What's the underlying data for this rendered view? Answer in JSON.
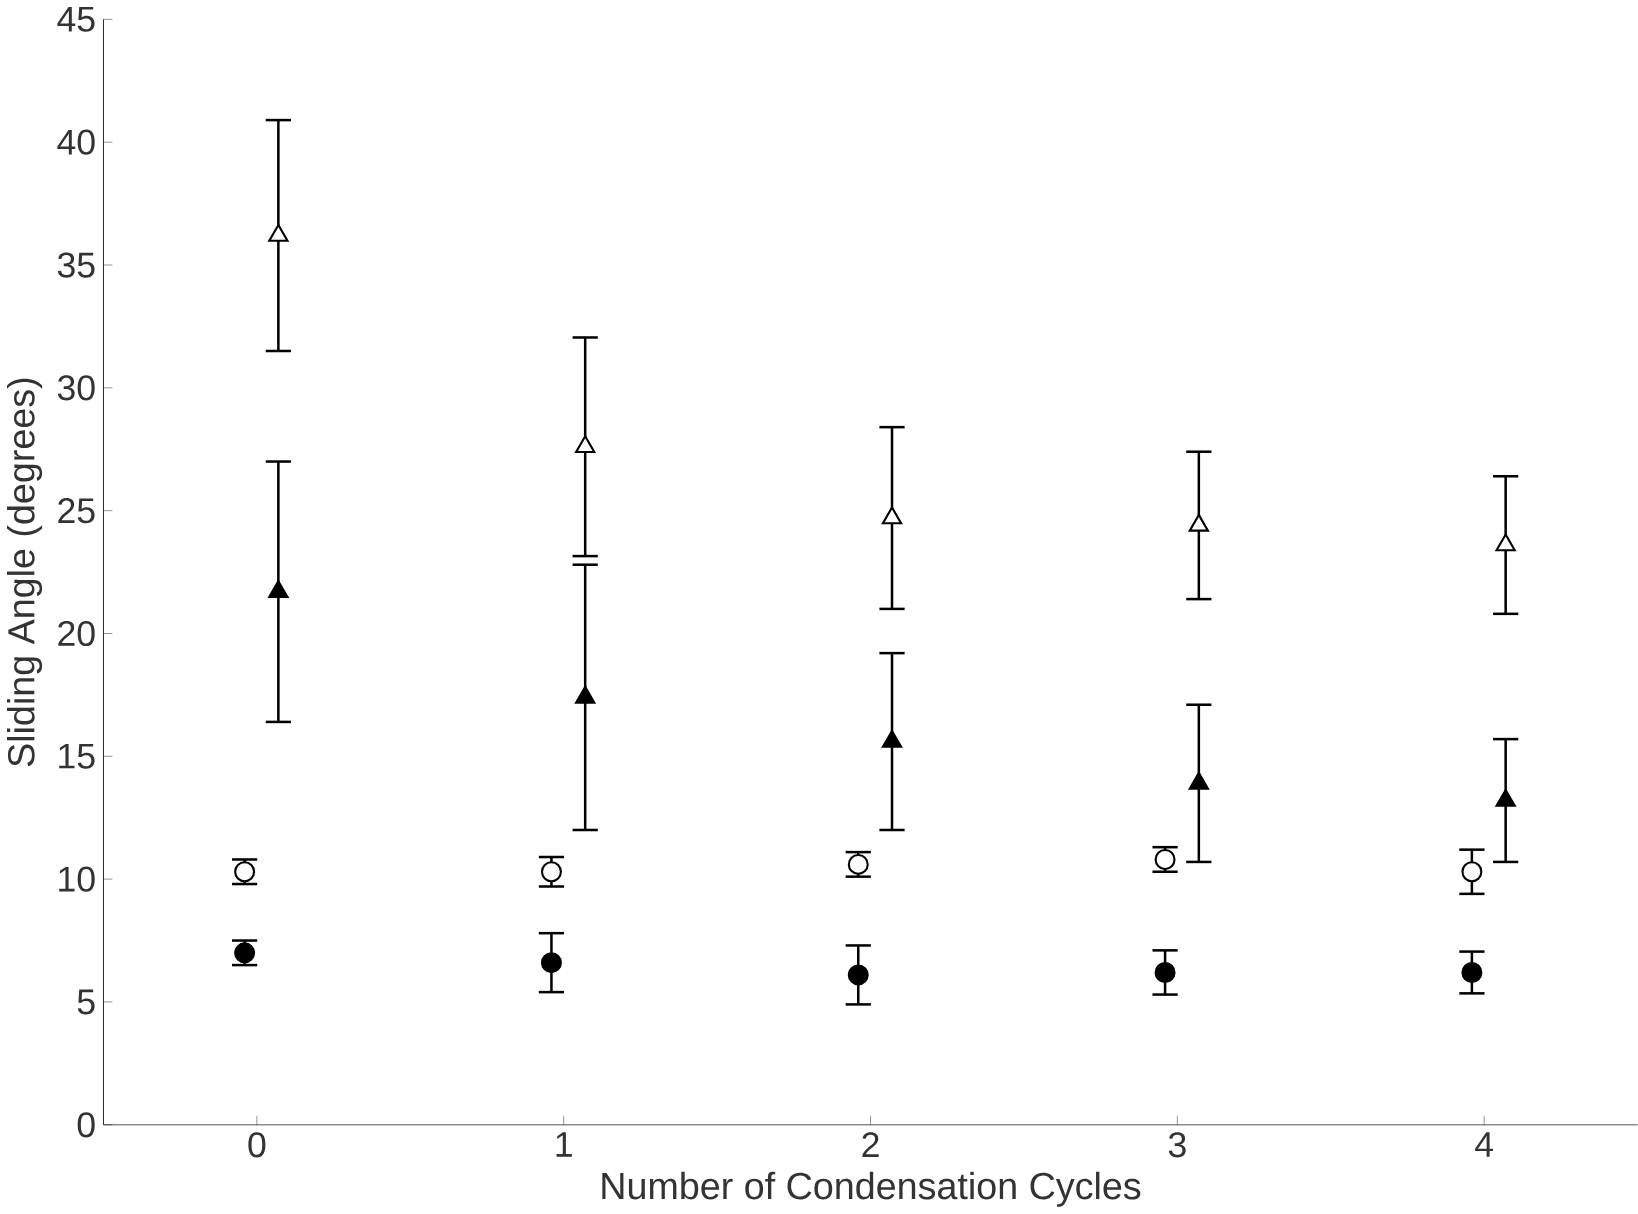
{
  "chart_data": {
    "type": "scatter",
    "xlabel": "Number of Condensation Cycles",
    "ylabel": "Sliding Angle (degrees)",
    "xlim": [
      -0.5,
      4.5
    ],
    "ylim": [
      0,
      45
    ],
    "xticks": [
      0,
      1,
      2,
      3,
      4
    ],
    "yticks": [
      0,
      5,
      10,
      15,
      20,
      25,
      30,
      35,
      40,
      45
    ],
    "grid": false,
    "series": [
      {
        "color": "#ffffff",
        "marker": "triangle",
        "x": [
          0.07,
          1.07,
          2.07,
          3.07,
          4.07
        ],
        "values": [
          36.2,
          27.6,
          24.7,
          24.4,
          23.6
        ],
        "errors": [
          4.7,
          4.45,
          3.7,
          3.0,
          2.8
        ]
      },
      {
        "color": "#000000",
        "marker": "triangle",
        "x": [
          0.07,
          1.07,
          2.07,
          3.07,
          4.07
        ],
        "values": [
          21.7,
          17.4,
          15.6,
          13.9,
          13.2
        ],
        "errors": [
          5.3,
          5.4,
          3.6,
          3.2,
          2.5
        ]
      },
      {
        "color": "#ffffff",
        "marker": "circle",
        "x": [
          -0.04,
          0.96,
          1.96,
          2.96,
          3.96
        ],
        "values": [
          10.3,
          10.3,
          10.6,
          10.8,
          10.3
        ],
        "errors": [
          0.5,
          0.6,
          0.5,
          0.5,
          0.9
        ]
      },
      {
        "color": "#000000",
        "marker": "circle",
        "x": [
          -0.04,
          0.96,
          1.96,
          2.96,
          3.96
        ],
        "values": [
          7.0,
          6.6,
          6.1,
          6.2,
          6.2
        ],
        "errors": [
          0.5,
          1.2,
          1.2,
          0.9,
          0.85
        ]
      }
    ]
  }
}
